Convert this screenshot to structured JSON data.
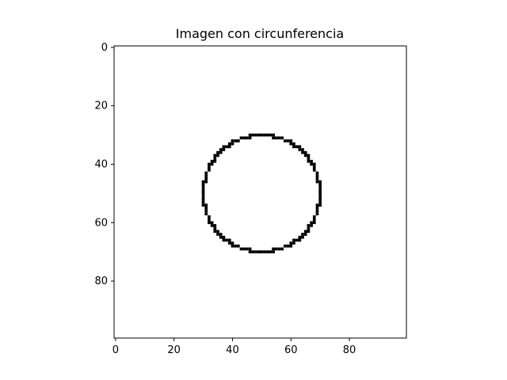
{
  "chart_data": {
    "type": "heatmap",
    "title": "Imagen con circunferencia",
    "xlabel": "",
    "ylabel": "",
    "image_size": [
      100,
      100
    ],
    "colormap": "gray_r",
    "background_value": 0,
    "foreground_value": 1,
    "xlim": [
      -0.5,
      99.5
    ],
    "ylim": [
      99.5,
      -0.5
    ],
    "x_ticks": [
      0,
      20,
      40,
      60,
      80
    ],
    "y_ticks": [
      0,
      20,
      40,
      60,
      80
    ],
    "x_tick_labels": [
      "0",
      "20",
      "40",
      "60",
      "80"
    ],
    "y_tick_labels": [
      "0",
      "20",
      "40",
      "60",
      "80"
    ],
    "circle": {
      "center_x": 50,
      "center_y": 50,
      "radius": 20
    },
    "grid": false,
    "legend": "none"
  },
  "colors": {
    "foreground": "#000000",
    "background": "#ffffff",
    "axis": "#000000"
  }
}
